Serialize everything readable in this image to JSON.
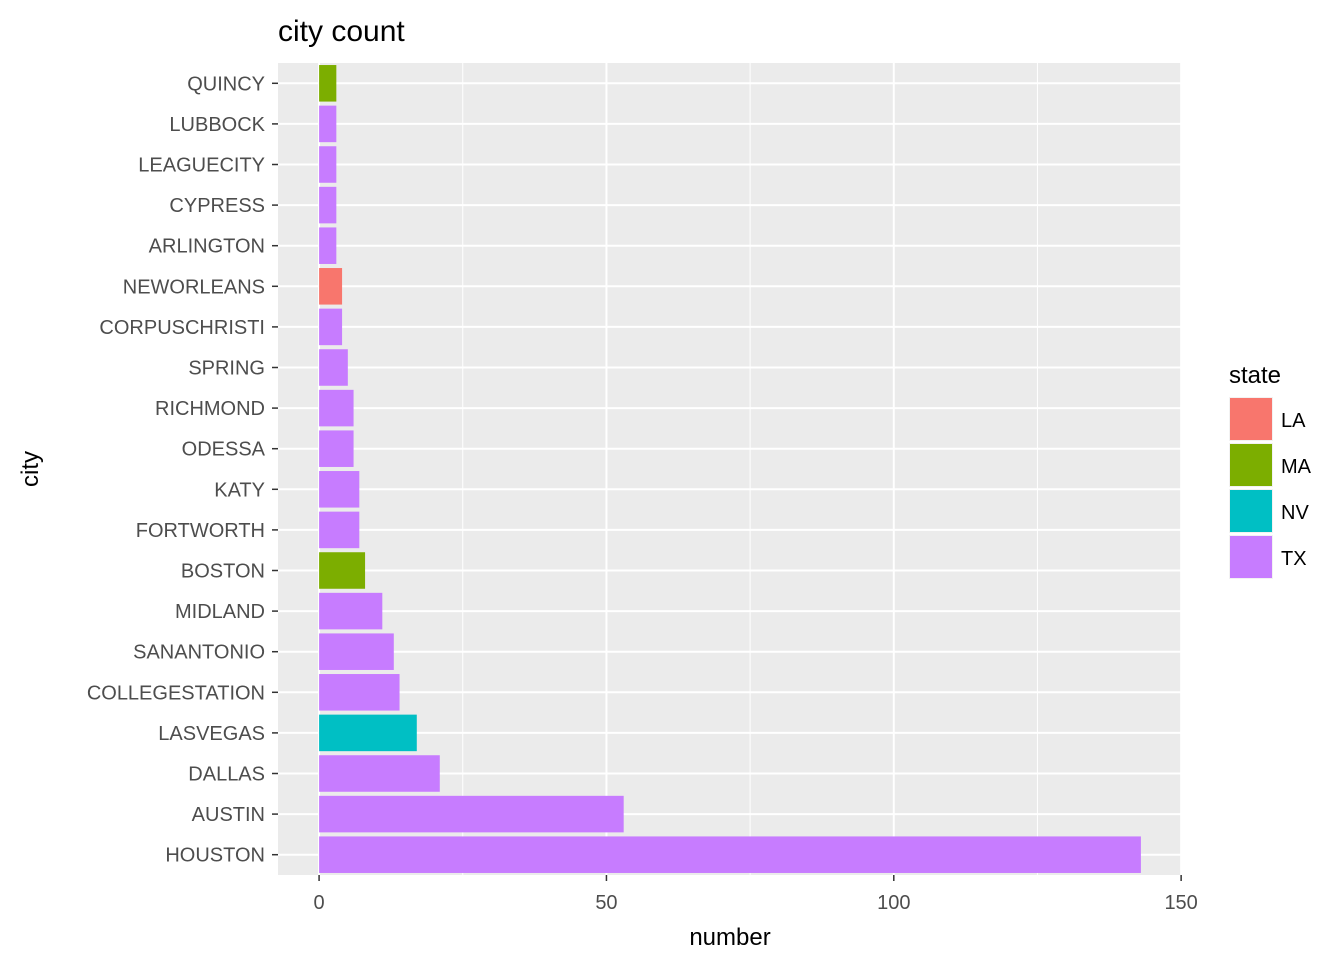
{
  "chart_data": {
    "type": "bar",
    "orientation": "horizontal",
    "title": "city count",
    "xlabel": "number",
    "ylabel": "city",
    "xlim": [
      -7.15,
      150.15
    ],
    "x_ticks": [
      0,
      50,
      100,
      150
    ],
    "grid": true,
    "legend": {
      "title": "state",
      "position": "right",
      "entries": [
        {
          "label": "LA",
          "color": "#F8766D"
        },
        {
          "label": "MA",
          "color": "#7CAE00"
        },
        {
          "label": "NV",
          "color": "#00BFC4"
        },
        {
          "label": "TX",
          "color": "#C77CFF"
        }
      ]
    },
    "categories": [
      "HOUSTON",
      "AUSTIN",
      "DALLAS",
      "LASVEGAS",
      "COLLEGESTATION",
      "SANANTONIO",
      "MIDLAND",
      "BOSTON",
      "FORTWORTH",
      "KATY",
      "ODESSA",
      "RICHMOND",
      "SPRING",
      "CORPUSCHRISTI",
      "NEWORLEANS",
      "ARLINGTON",
      "CYPRESS",
      "LEAGUECITY",
      "LUBBOCK",
      "QUINCY"
    ],
    "values": [
      143,
      53,
      21,
      17,
      14,
      13,
      11,
      8,
      7,
      7,
      6,
      6,
      5,
      4,
      4,
      3,
      3,
      3,
      3,
      3
    ],
    "states": [
      "TX",
      "TX",
      "TX",
      "NV",
      "TX",
      "TX",
      "TX",
      "MA",
      "TX",
      "TX",
      "TX",
      "TX",
      "TX",
      "TX",
      "LA",
      "TX",
      "TX",
      "TX",
      "TX",
      "MA"
    ]
  }
}
